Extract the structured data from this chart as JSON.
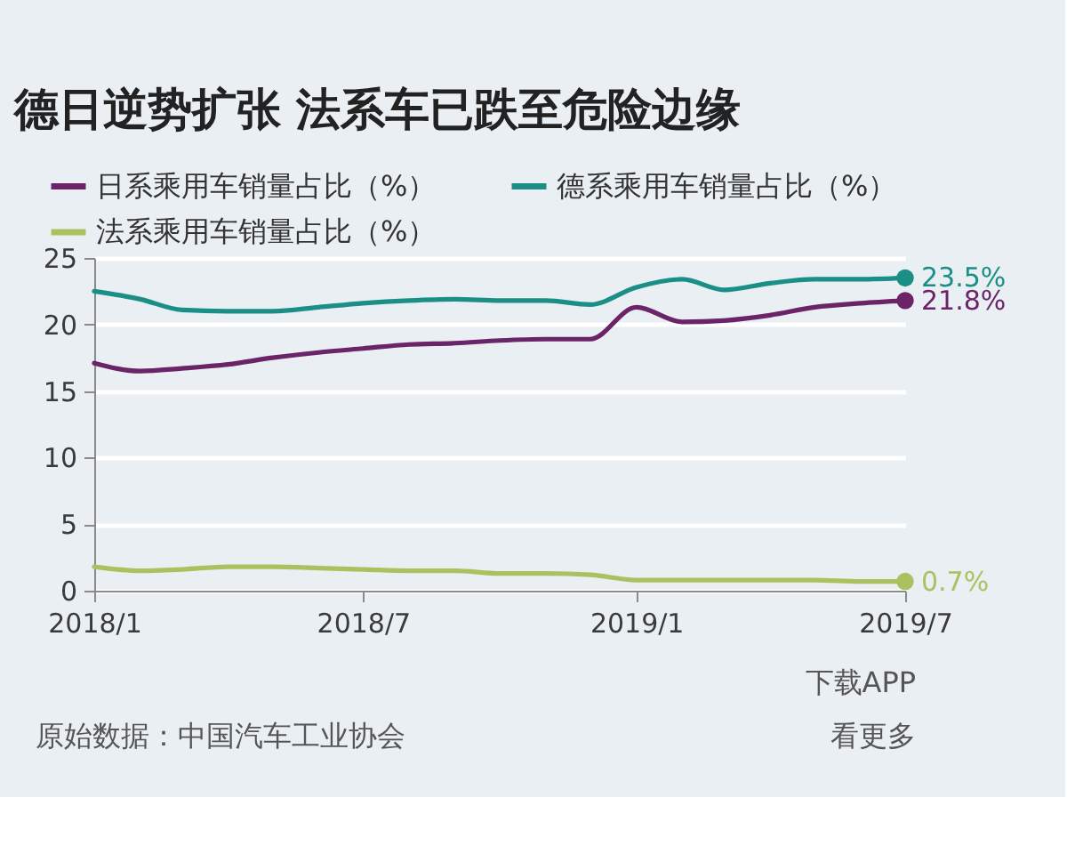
{
  "chart_data": {
    "type": "line",
    "title": "德日逆势扩张 法系车已跌至危险边缘",
    "x": [
      "2018-01",
      "2018-02",
      "2018-03",
      "2018-04",
      "2018-05",
      "2018-06",
      "2018-07",
      "2018-08",
      "2018-09",
      "2018-10",
      "2018-11",
      "2018-12",
      "2019-01",
      "2019-02",
      "2019-03",
      "2019-04",
      "2019-05",
      "2019-06",
      "2019-07"
    ],
    "xlim": [
      "2018-01",
      "2019-07"
    ],
    "xticks": [
      {
        "value": "2018-01",
        "label": "2018/1"
      },
      {
        "value": "2018-07",
        "label": "2018/7"
      },
      {
        "value": "2019-01",
        "label": "2019/1"
      },
      {
        "value": "2019-07",
        "label": "2019/7"
      }
    ],
    "ylim": [
      0,
      25
    ],
    "yticks": [
      0,
      5,
      10,
      15,
      20,
      25
    ],
    "grid": "y",
    "legend": "top left",
    "series": [
      {
        "name": "日系乘用车销量占比（%）",
        "color": "#6a2467",
        "values": [
          17.1,
          16.5,
          16.7,
          17.0,
          17.5,
          17.9,
          18.2,
          18.5,
          18.6,
          18.8,
          18.9,
          18.9,
          21.3,
          20.2,
          20.3,
          20.7,
          21.3,
          21.6,
          21.8
        ],
        "value_labels": [
          null,
          null,
          null,
          null,
          null,
          null,
          null,
          null,
          null,
          null,
          null,
          null,
          null,
          null,
          null,
          null,
          null,
          null,
          "21.8%"
        ]
      },
      {
        "name": "德系乘用车销量占比（%）",
        "color": "#1b8f86",
        "values": [
          22.5,
          21.9,
          21.1,
          21.0,
          21.0,
          21.3,
          21.6,
          21.8,
          21.9,
          21.8,
          21.8,
          21.5,
          22.8,
          23.4,
          22.6,
          23.1,
          23.4,
          23.4,
          23.5
        ],
        "value_labels": [
          null,
          null,
          null,
          null,
          null,
          null,
          null,
          null,
          null,
          null,
          null,
          null,
          null,
          null,
          null,
          null,
          null,
          null,
          "23.5%"
        ]
      },
      {
        "name": "法系乘用车销量占比（%）",
        "color": "#a9c25f",
        "values": [
          1.8,
          1.5,
          1.6,
          1.8,
          1.8,
          1.7,
          1.6,
          1.5,
          1.5,
          1.3,
          1.3,
          1.2,
          0.8,
          0.8,
          0.8,
          0.8,
          0.8,
          0.7,
          0.7
        ],
        "value_labels": [
          null,
          null,
          null,
          null,
          null,
          null,
          null,
          null,
          null,
          null,
          null,
          null,
          null,
          null,
          null,
          null,
          null,
          null,
          "0.7%"
        ]
      }
    ],
    "annotations": [
      "原始数据：中国汽车工业协会",
      "下载APP",
      "看更多"
    ]
  }
}
